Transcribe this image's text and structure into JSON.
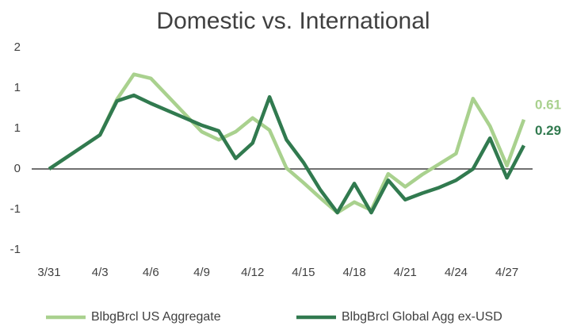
{
  "chart_data": {
    "type": "line",
    "title": "Domestic vs. International",
    "categories": [
      "3/31",
      null,
      null,
      "4/3",
      null,
      null,
      "4/6",
      null,
      null,
      "4/9",
      null,
      null,
      "4/12",
      null,
      null,
      "4/15",
      null,
      null,
      "4/18",
      null,
      null,
      "4/21",
      null,
      null,
      "4/24",
      null,
      null,
      "4/27",
      null
    ],
    "series": [
      {
        "name": "BlbgBrcl US Aggregate",
        "color": "#a9d18e",
        "values": [
          0,
          0.14,
          0.28,
          0.42,
          0.86,
          1.17,
          1.12,
          0.9,
          0.68,
          0.46,
          0.36,
          0.46,
          0.63,
          0.48,
          0.01,
          -0.17,
          -0.36,
          -0.54,
          -0.41,
          -0.51,
          -0.06,
          -0.22,
          -0.07,
          0.06,
          0.19,
          0.87,
          0.53,
          0.04,
          0.61
        ]
      },
      {
        "name": "BlbgBrcl Global Agg ex-USD",
        "color": "#317a4f",
        "values": [
          0,
          0.14,
          0.28,
          0.42,
          0.84,
          0.91,
          0.81,
          0.72,
          0.63,
          0.54,
          0.47,
          0.13,
          0.32,
          0.89,
          0.36,
          0.08,
          -0.26,
          -0.54,
          -0.18,
          -0.54,
          -0.14,
          -0.38,
          -0.3,
          -0.23,
          -0.14,
          0,
          0.38,
          -0.11,
          0.29
        ]
      }
    ],
    "ylim": [
      -1,
      1.5
    ],
    "yticks": [
      {
        "value": 1.5,
        "label": "2"
      },
      1,
      {
        "value": 0.5,
        "label": "1"
      },
      0,
      {
        "value": -0.5,
        "label": "-1"
      },
      -1
    ],
    "grid": false,
    "legend": "bottom"
  }
}
